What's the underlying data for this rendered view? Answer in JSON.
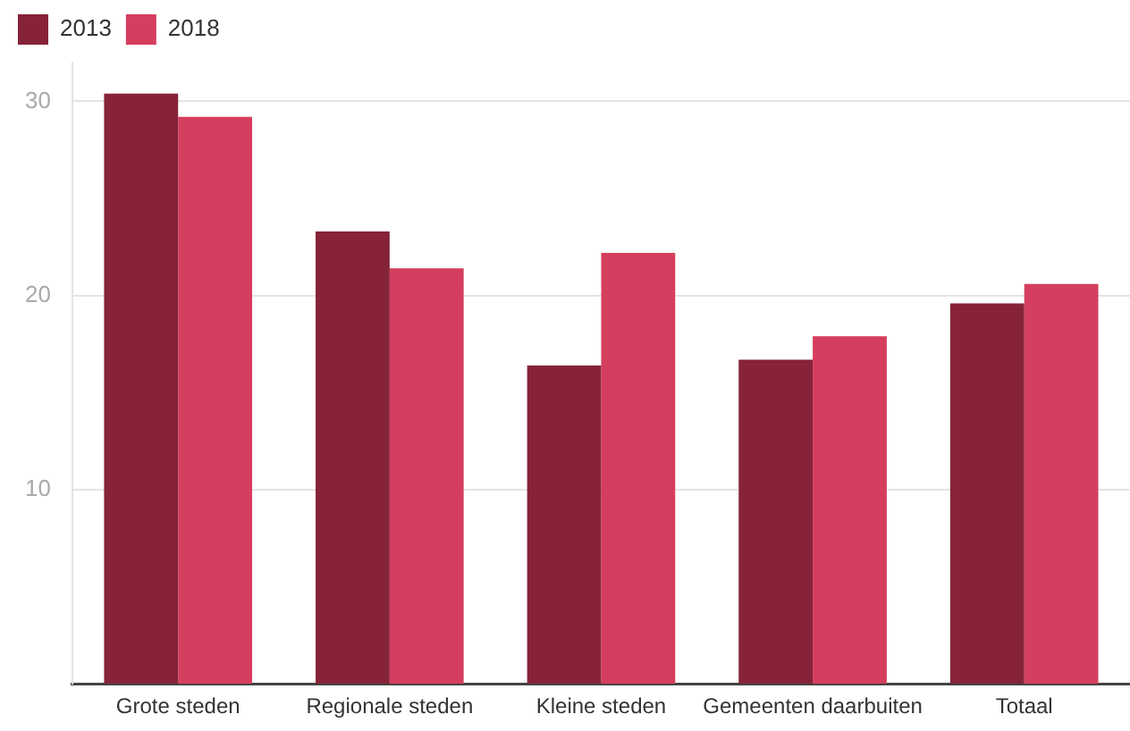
{
  "chart_data": {
    "type": "bar",
    "categories": [
      "Grote steden",
      "Regionale steden",
      "Kleine steden",
      "Gemeenten daarbuiten",
      "Totaal"
    ],
    "series": [
      {
        "name": "2013",
        "color": "#862339",
        "values": [
          30.4,
          23.3,
          16.4,
          16.7,
          19.6
        ]
      },
      {
        "name": "2018",
        "color": "#d53e5e",
        "values": [
          29.2,
          21.4,
          22.2,
          17.9,
          20.6
        ]
      }
    ],
    "ylim": [
      0,
      32
    ],
    "yticks": [
      10,
      20,
      30
    ],
    "grid": "y",
    "legend": "top left"
  }
}
